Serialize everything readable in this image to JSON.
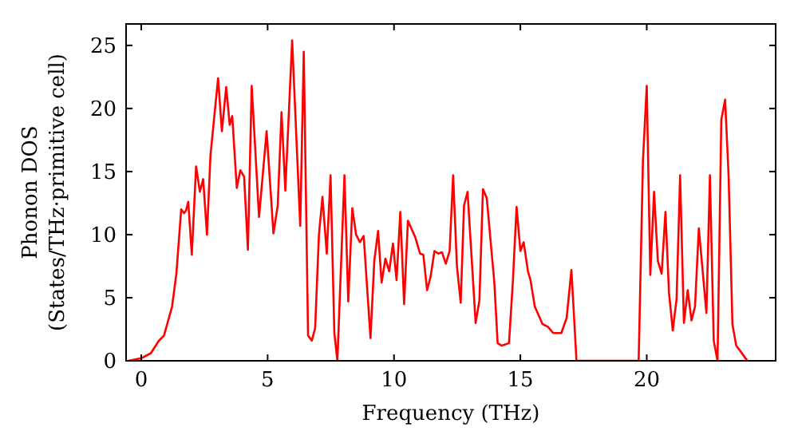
{
  "chart_data": {
    "type": "line",
    "xlabel": "Frequency (THz)",
    "ylabel": "Phonon DOS\n(States/THz·primitive cell)",
    "xlim": [
      -0.6,
      25.1
    ],
    "ylim": [
      0,
      26.7
    ],
    "xticks": [
      0,
      5,
      10,
      15,
      20
    ],
    "yticks": [
      0,
      5,
      10,
      15,
      20,
      25
    ],
    "grid": false,
    "marker": "none",
    "line_style": "solid",
    "series": [
      {
        "color": "#ff0000",
        "x": [
          -0.5,
          0,
          0.38,
          0.7,
          0.9,
          1.22,
          1.39,
          1.58,
          1.69,
          1.77,
          1.86,
          2.0,
          2.17,
          2.32,
          2.45,
          2.6,
          2.74,
          3.04,
          3.19,
          3.36,
          3.5,
          3.6,
          3.78,
          3.92,
          4.07,
          4.22,
          4.37,
          4.66,
          4.96,
          5.23,
          5.4,
          5.55,
          5.7,
          5.97,
          6.29,
          6.43,
          6.6,
          6.75,
          6.88,
          7.03,
          7.17,
          7.34,
          7.49,
          7.64,
          7.76,
          8.04,
          8.19,
          8.35,
          8.5,
          8.65,
          8.8,
          9.07,
          9.22,
          9.37,
          9.51,
          9.66,
          9.81,
          9.96,
          10.1,
          10.25,
          10.4,
          10.55,
          10.84,
          11.03,
          11.16,
          11.31,
          11.45,
          11.6,
          11.75,
          11.9,
          12.05,
          12.2,
          12.34,
          12.49,
          12.64,
          12.77,
          12.91,
          13.23,
          13.38,
          13.52,
          13.67,
          13.97,
          14.1,
          14.26,
          14.55,
          14.7,
          14.85,
          15.0,
          15.13,
          15.3,
          15.4,
          15.57,
          15.88,
          16.09,
          16.3,
          16.62,
          16.83,
          17.02,
          17.22,
          19.68,
          19.85,
          20.0,
          20.14,
          20.29,
          20.44,
          20.59,
          20.74,
          20.88,
          21.03,
          21.18,
          21.32,
          21.47,
          21.62,
          21.77,
          21.91,
          22.06,
          22.36,
          22.5,
          22.65,
          22.8,
          22.95,
          23.1,
          23.24,
          23.39,
          23.54,
          23.69,
          23.98
        ],
        "values": [
          0,
          0.2,
          0.6,
          1.6,
          2.0,
          4.3,
          6.9,
          12.0,
          11.7,
          11.9,
          12.6,
          8.4,
          15.4,
          13.4,
          14.4,
          10.0,
          16.3,
          22.4,
          18.2,
          21.7,
          18.7,
          19.4,
          13.7,
          15.1,
          14.6,
          8.8,
          21.8,
          11.4,
          18.2,
          10.1,
          12.3,
          19.7,
          13.5,
          25.4,
          10.7,
          24.5,
          2.0,
          1.6,
          2.6,
          10.0,
          13.0,
          8.5,
          14.7,
          2.2,
          0,
          14.7,
          4.7,
          12.1,
          10.0,
          9.4,
          9.9,
          1.8,
          7.9,
          10.3,
          6.2,
          8.1,
          7.1,
          9.3,
          6.4,
          11.8,
          4.5,
          11.1,
          9.8,
          8.5,
          8.4,
          5.6,
          6.7,
          8.7,
          8.5,
          8.6,
          7.7,
          8.7,
          14.7,
          7.5,
          4.6,
          12.3,
          13.4,
          3.0,
          4.8,
          13.6,
          12.9,
          6.2,
          1.4,
          1.2,
          1.4,
          6.2,
          12.2,
          8.7,
          9.4,
          7.1,
          6.4,
          4.3,
          2.9,
          2.7,
          2.2,
          2.2,
          3.4,
          7.2,
          0,
          0,
          15.9,
          21.8,
          6.8,
          13.4,
          7.9,
          6.9,
          11.8,
          5.4,
          2.4,
          4.9,
          14.7,
          3.0,
          5.6,
          3.2,
          4.3,
          10.5,
          3.8,
          14.7,
          1.6,
          0,
          19.1,
          20.7,
          14.6,
          2.9,
          1.2,
          0.8,
          0
        ]
      }
    ]
  }
}
